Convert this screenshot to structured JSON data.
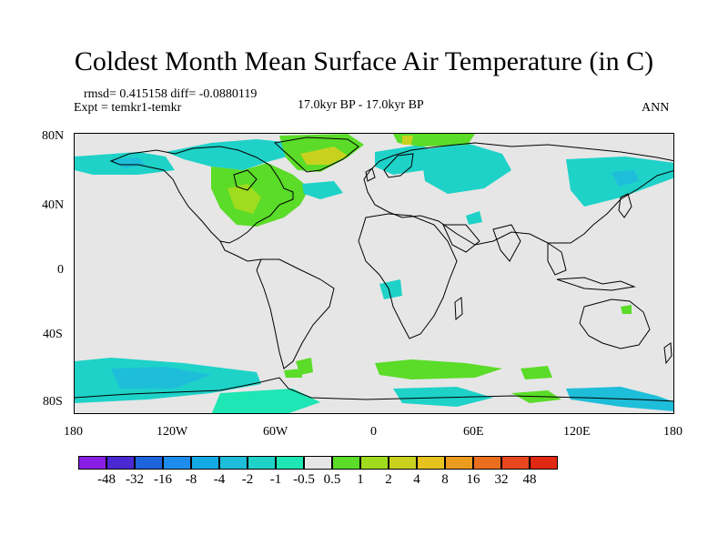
{
  "title": "Coldest Month Mean Surface Air Temperature (in C)",
  "stats": {
    "rmsd_diff": "rmsd= 0.415158 diff= -0.0880119",
    "expt": "Expt = temkr1-temkr",
    "period": "17.0kyr BP - 17.0kyr BP",
    "season": "ANN"
  },
  "map": {
    "lat_labels": [
      "80N",
      "40N",
      "0",
      "40S",
      "80S"
    ],
    "lon_labels": [
      "180",
      "120W",
      "60W",
      "0",
      "60E",
      "120E",
      "180"
    ],
    "background_color": "#e6e6e6",
    "coastline_color": "#000000"
  },
  "legend": {
    "labels": [
      "-48",
      "-32",
      "-16",
      "-8",
      "-4",
      "-2",
      "-1",
      "-0.5",
      "0.5",
      "1",
      "2",
      "4",
      "8",
      "16",
      "32",
      "48"
    ],
    "colors": [
      "#8a1ee6",
      "#4b28d2",
      "#1e64dc",
      "#1e8cec",
      "#14aae6",
      "#1ebeda",
      "#1ed2c8",
      "#1ee6b4",
      "#e6e6e6",
      "#5adc28",
      "#a0dc1e",
      "#c8d21e",
      "#e6c31e",
      "#eb9b1e",
      "#eb6e1e",
      "#e8461e",
      "#e02814"
    ]
  }
}
